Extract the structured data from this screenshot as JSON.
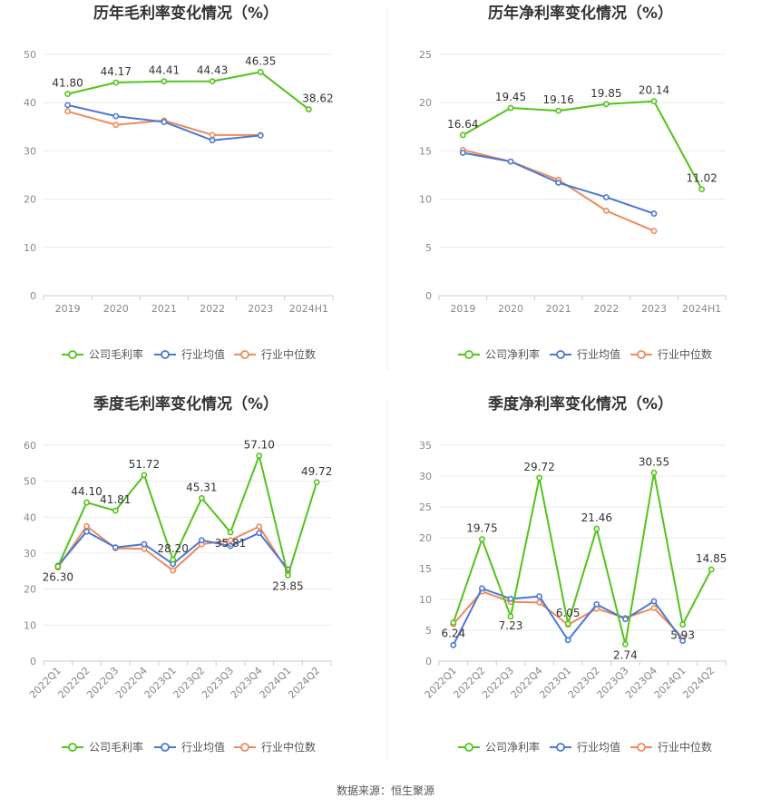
{
  "source_text": "数据来源：恒生聚源",
  "chart_data": [
    {
      "type": "line",
      "title": "历年毛利率变化情况（%）",
      "categories": [
        "2019",
        "2020",
        "2021",
        "2022",
        "2023",
        "2024H1"
      ],
      "ylim": [
        0,
        50
      ],
      "yticks": [
        0,
        10,
        20,
        30,
        40,
        50
      ],
      "rotate_ticks": false,
      "series": [
        {
          "name": "公司毛利率",
          "color": "#52c41a",
          "values": [
            41.8,
            44.17,
            44.41,
            44.43,
            46.35,
            38.62
          ]
        },
        {
          "name": "行业均值",
          "color": "#4a78d4",
          "values": [
            39.5,
            37.2,
            36.0,
            32.2,
            33.2,
            null
          ]
        },
        {
          "name": "行业中位数",
          "color": "#ee8a5c",
          "values": [
            38.2,
            35.4,
            36.3,
            33.3,
            33.3,
            null
          ]
        }
      ],
      "data_labels": [
        {
          "series": 0,
          "index": 0,
          "text": "41.80"
        },
        {
          "series": 0,
          "index": 1,
          "text": "44.17"
        },
        {
          "series": 0,
          "index": 2,
          "text": "44.41"
        },
        {
          "series": 0,
          "index": 3,
          "text": "44.43"
        },
        {
          "series": 0,
          "index": 4,
          "text": "46.35"
        },
        {
          "series": 0,
          "index": 5,
          "text": "38.62"
        }
      ]
    },
    {
      "type": "line",
      "title": "历年净利率变化情况（%）",
      "categories": [
        "2019",
        "2020",
        "2021",
        "2022",
        "2023",
        "2024H1"
      ],
      "ylim": [
        0,
        25
      ],
      "yticks": [
        0,
        5,
        10,
        15,
        20,
        25
      ],
      "rotate_ticks": false,
      "series": [
        {
          "name": "公司净利率",
          "color": "#52c41a",
          "values": [
            16.64,
            19.45,
            19.16,
            19.85,
            20.14,
            11.02
          ]
        },
        {
          "name": "行业均值",
          "color": "#4a78d4",
          "values": [
            14.8,
            13.9,
            11.7,
            10.2,
            8.5,
            null
          ]
        },
        {
          "name": "行业中位数",
          "color": "#ee8a5c",
          "values": [
            15.1,
            13.9,
            12.0,
            8.8,
            6.7,
            null
          ]
        }
      ],
      "data_labels": [
        {
          "series": 0,
          "index": 0,
          "text": "16.64"
        },
        {
          "series": 0,
          "index": 1,
          "text": "19.45"
        },
        {
          "series": 0,
          "index": 2,
          "text": "19.16"
        },
        {
          "series": 0,
          "index": 3,
          "text": "19.85"
        },
        {
          "series": 0,
          "index": 4,
          "text": "20.14"
        },
        {
          "series": 0,
          "index": 5,
          "text": "11.02"
        }
      ]
    },
    {
      "type": "line",
      "title": "季度毛利率变化情况（%）",
      "categories": [
        "2022Q1",
        "2022Q2",
        "2022Q3",
        "2022Q4",
        "2023Q1",
        "2023Q2",
        "2023Q3",
        "2023Q4",
        "2024Q1",
        "2024Q2"
      ],
      "ylim": [
        0,
        60
      ],
      "yticks": [
        0,
        10,
        20,
        30,
        40,
        50,
        60
      ],
      "rotate_ticks": true,
      "series": [
        {
          "name": "公司毛利率",
          "color": "#52c41a",
          "values": [
            26.3,
            44.1,
            41.81,
            51.72,
            28.2,
            45.31,
            35.81,
            57.1,
            23.85,
            49.72
          ]
        },
        {
          "name": "行业均值",
          "color": "#4a78d4",
          "values": [
            26.5,
            36.0,
            31.6,
            32.5,
            27.0,
            33.6,
            32.0,
            35.6,
            25.5,
            null
          ]
        },
        {
          "name": "行业中位数",
          "color": "#ee8a5c",
          "values": [
            26.0,
            37.5,
            31.4,
            31.2,
            25.2,
            32.5,
            33.6,
            37.4,
            24.8,
            null
          ]
        }
      ],
      "data_labels": [
        {
          "series": 0,
          "index": 0,
          "text": "26.30"
        },
        {
          "series": 0,
          "index": 1,
          "text": "44.10"
        },
        {
          "series": 0,
          "index": 2,
          "text": "41.81"
        },
        {
          "series": 0,
          "index": 3,
          "text": "51.72"
        },
        {
          "series": 0,
          "index": 4,
          "text": "28.20"
        },
        {
          "series": 0,
          "index": 5,
          "text": "45.31"
        },
        {
          "series": 0,
          "index": 6,
          "text": "35.81"
        },
        {
          "series": 0,
          "index": 7,
          "text": "57.10"
        },
        {
          "series": 0,
          "index": 8,
          "text": "23.85"
        },
        {
          "series": 0,
          "index": 9,
          "text": "49.72"
        }
      ]
    },
    {
      "type": "line",
      "title": "季度净利率变化情况（%）",
      "categories": [
        "2022Q1",
        "2022Q2",
        "2022Q3",
        "2022Q4",
        "2023Q1",
        "2023Q2",
        "2023Q3",
        "2023Q4",
        "2024Q1",
        "2024Q2"
      ],
      "ylim": [
        0,
        35
      ],
      "yticks": [
        0,
        5,
        10,
        15,
        20,
        25,
        30,
        35
      ],
      "rotate_ticks": true,
      "series": [
        {
          "name": "公司净利率",
          "color": "#52c41a",
          "values": [
            6.24,
            19.75,
            7.23,
            29.72,
            6.05,
            21.46,
            2.74,
            30.55,
            5.93,
            14.85
          ]
        },
        {
          "name": "行业均值",
          "color": "#4a78d4",
          "values": [
            2.6,
            11.8,
            10.1,
            10.5,
            3.4,
            9.2,
            6.8,
            9.7,
            3.3,
            null
          ]
        },
        {
          "name": "行业中位数",
          "color": "#ee8a5c",
          "values": [
            6.0,
            11.3,
            9.6,
            9.5,
            5.9,
            8.5,
            7.0,
            8.6,
            3.8,
            null
          ]
        }
      ],
      "data_labels": [
        {
          "series": 0,
          "index": 0,
          "text": "6.24"
        },
        {
          "series": 0,
          "index": 1,
          "text": "19.75"
        },
        {
          "series": 0,
          "index": 2,
          "text": "7.23"
        },
        {
          "series": 0,
          "index": 3,
          "text": "29.72"
        },
        {
          "series": 0,
          "index": 4,
          "text": "6.05"
        },
        {
          "series": 0,
          "index": 5,
          "text": "21.46"
        },
        {
          "series": 0,
          "index": 6,
          "text": "2.74"
        },
        {
          "series": 0,
          "index": 7,
          "text": "30.55"
        },
        {
          "series": 0,
          "index": 8,
          "text": "5.93"
        },
        {
          "series": 0,
          "index": 9,
          "text": "14.85"
        }
      ]
    }
  ]
}
